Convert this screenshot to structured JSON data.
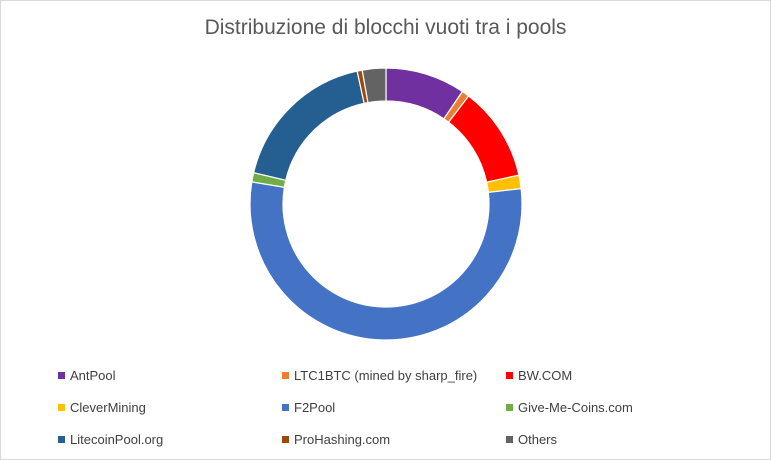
{
  "chart_data": {
    "type": "pie",
    "subtype": "doughnut",
    "title": "Distribuzione di blocchi vuoti tra i pools",
    "series": [
      {
        "name": "AntPool",
        "value": 9.5,
        "color": "#7030A0"
      },
      {
        "name": "LTC1BTC (mined by sharp_fire)",
        "value": 0.9,
        "color": "#ED7D31"
      },
      {
        "name": "BW.COM",
        "value": 11.2,
        "color": "#FF0000"
      },
      {
        "name": "CleverMining",
        "value": 1.6,
        "color": "#FFC000"
      },
      {
        "name": "F2Pool",
        "value": 54.4,
        "color": "#4472C4"
      },
      {
        "name": "Give-Me-Coins.com",
        "value": 1.1,
        "color": "#70AD47"
      },
      {
        "name": "LitecoinPool.org",
        "value": 17.9,
        "color": "#255E91"
      },
      {
        "name": "ProHashing.com",
        "value": 0.6,
        "color": "#9E480E"
      },
      {
        "name": "Others",
        "value": 2.8,
        "color": "#636363"
      }
    ],
    "legend_position": "bottom"
  }
}
